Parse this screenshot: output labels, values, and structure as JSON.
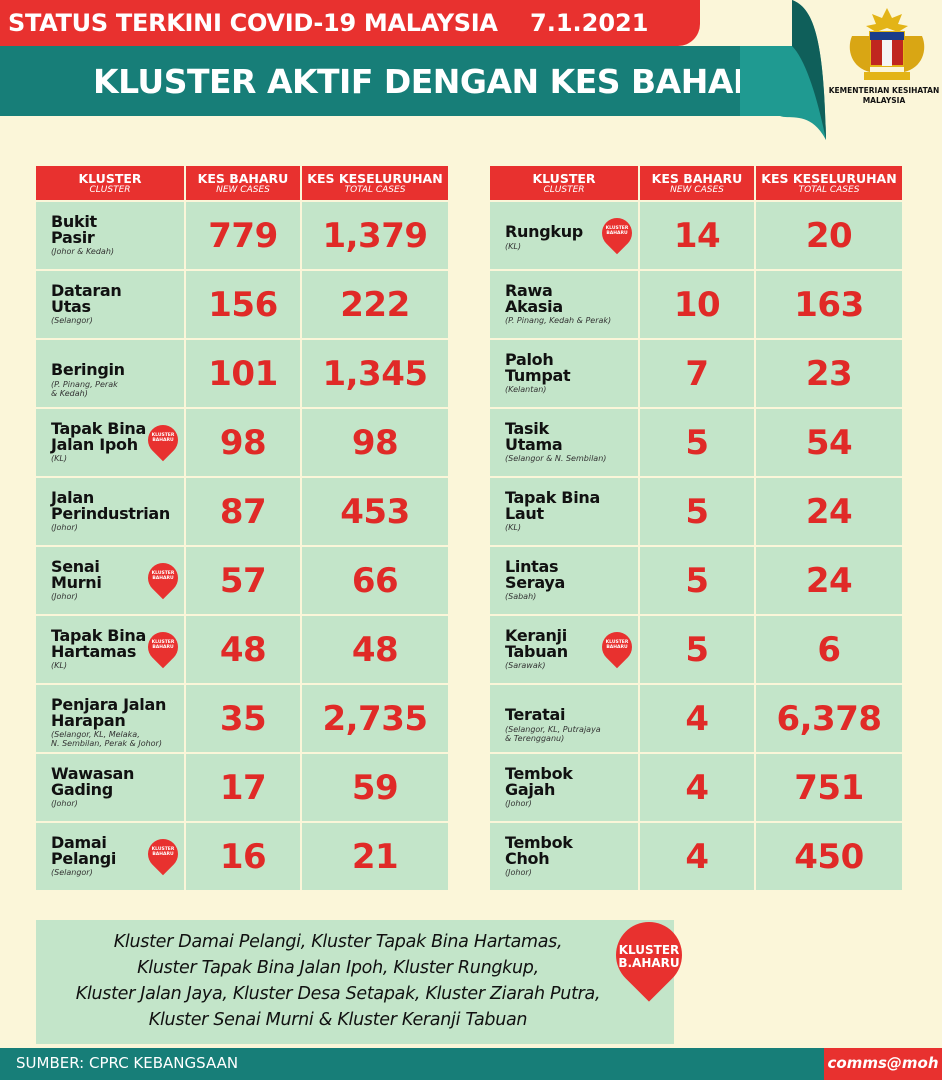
{
  "header": {
    "title_line1": "STATUS TERKINI COVID-19 MALAYSIA",
    "date": "7.1.2021",
    "title_line2": "KLUSTER AKTIF DENGAN KES BAHARU",
    "ministry": "KEMENTERIAN KESIHATAN MALAYSIA"
  },
  "columns": {
    "cluster": "KLUSTER",
    "cluster_en": "CLUSTER",
    "new_cases": "KES BAHARU",
    "new_cases_en": "NEW CASES",
    "total_cases": "KES KESELURUHAN",
    "total_cases_en": "TOTAL CASES"
  },
  "pin_label": "KLUSTER BAHARU",
  "left_table": [
    {
      "name": [
        "Bukit",
        "Pasir"
      ],
      "state": [
        "(Johor & Kedah)"
      ],
      "new": "779",
      "total": "1,379",
      "is_new_cluster": false
    },
    {
      "name": [
        "Dataran",
        "Utas"
      ],
      "state": [
        "(Selangor)"
      ],
      "new": "156",
      "total": "222",
      "is_new_cluster": false
    },
    {
      "name": [
        "Beringin"
      ],
      "state": [
        "(P. Pinang, Perak",
        "& Kedah)"
      ],
      "new": "101",
      "total": "1,345",
      "is_new_cluster": false
    },
    {
      "name": [
        "Tapak Bina",
        "Jalan Ipoh"
      ],
      "state": [
        "(KL)"
      ],
      "new": "98",
      "total": "98",
      "is_new_cluster": true
    },
    {
      "name": [
        "Jalan",
        "Perindustrian"
      ],
      "state": [
        "(Johor)"
      ],
      "new": "87",
      "total": "453",
      "is_new_cluster": false
    },
    {
      "name": [
        "Senai",
        "Murni"
      ],
      "state": [
        "(Johor)"
      ],
      "new": "57",
      "total": "66",
      "is_new_cluster": true
    },
    {
      "name": [
        "Tapak Bina",
        "Hartamas"
      ],
      "state": [
        "(KL)"
      ],
      "new": "48",
      "total": "48",
      "is_new_cluster": true
    },
    {
      "name": [
        "Penjara Jalan",
        "Harapan"
      ],
      "state": [
        "(Selangor, KL, Melaka,",
        "N. Sembilan, Perak & Johor)"
      ],
      "new": "35",
      "total": "2,735",
      "is_new_cluster": false
    },
    {
      "name": [
        "Wawasan",
        "Gading"
      ],
      "state": [
        "(Johor)"
      ],
      "new": "17",
      "total": "59",
      "is_new_cluster": false
    },
    {
      "name": [
        "Damai",
        "Pelangi"
      ],
      "state": [
        "(Selangor)"
      ],
      "new": "16",
      "total": "21",
      "is_new_cluster": true
    }
  ],
  "right_table": [
    {
      "name": [
        "Rungkup"
      ],
      "state": [
        "(KL)"
      ],
      "new": "14",
      "total": "20",
      "is_new_cluster": true
    },
    {
      "name": [
        "Rawa",
        "Akasia"
      ],
      "state": [
        "(P. Pinang, Kedah & Perak)"
      ],
      "new": "10",
      "total": "163",
      "is_new_cluster": false
    },
    {
      "name": [
        "Paloh",
        "Tumpat"
      ],
      "state": [
        "(Kelantan)"
      ],
      "new": "7",
      "total": "23",
      "is_new_cluster": false
    },
    {
      "name": [
        "Tasik",
        "Utama"
      ],
      "state": [
        "(Selangor & N. Sembilan)"
      ],
      "new": "5",
      "total": "54",
      "is_new_cluster": false
    },
    {
      "name": [
        "Tapak Bina",
        "Laut"
      ],
      "state": [
        "(KL)"
      ],
      "new": "5",
      "total": "24",
      "is_new_cluster": false
    },
    {
      "name": [
        "Lintas",
        "Seraya"
      ],
      "state": [
        "(Sabah)"
      ],
      "new": "5",
      "total": "24",
      "is_new_cluster": false
    },
    {
      "name": [
        "Keranji",
        "Tabuan"
      ],
      "state": [
        "(Sarawak)"
      ],
      "new": "5",
      "total": "6",
      "is_new_cluster": true
    },
    {
      "name": [
        "Teratai"
      ],
      "state": [
        "(Selangor, KL, Putrajaya",
        "& Terengganu)"
      ],
      "new": "4",
      "total": "6,378",
      "is_new_cluster": false
    },
    {
      "name": [
        "Tembok",
        "Gajah"
      ],
      "state": [
        "(Johor)"
      ],
      "new": "4",
      "total": "751",
      "is_new_cluster": false
    },
    {
      "name": [
        "Tembok",
        "Choh"
      ],
      "state": [
        "(Johor)"
      ],
      "new": "4",
      "total": "450",
      "is_new_cluster": false
    }
  ],
  "notes": [
    "Kluster Damai Pelangi, Kluster Tapak Bina Hartamas,",
    "Kluster Tapak Bina Jalan Ipoh, Kluster Rungkup,",
    "Kluster Jalan Jaya, Kluster Desa Setapak, Kluster Ziarah Putra,",
    "Kluster Senai Murni & Kluster Keranji Tabuan"
  ],
  "big_pin": [
    "KLUSTER",
    "B.AHARU"
  ],
  "footer": {
    "source": "SUMBER: CPRC KEBANGSAAN",
    "brand": "comms@moh"
  },
  "colors": {
    "red": "#e8312f",
    "teal": "#177e78",
    "green_cell": "#c3e5c9",
    "background": "#fbf6d9",
    "number_red": "#e02a27"
  }
}
